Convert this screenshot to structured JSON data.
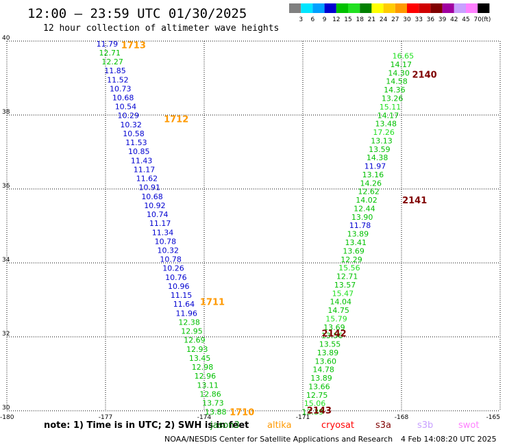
{
  "chart_data": {
    "type": "scatter",
    "title": "12:00 — 23:59 UTC 01/30/2025",
    "subtitle": "12 hour collection of altimeter wave heights",
    "xlim": [
      -180,
      -165
    ],
    "ylim": [
      30,
      40
    ],
    "x_ticks": [
      "-180",
      "-177",
      "-174",
      "-171",
      "-168",
      "-165"
    ],
    "y_ticks": [
      "30",
      "32",
      "34",
      "36",
      "38",
      "40"
    ],
    "colorbar": {
      "labels": [
        "3",
        "6",
        "9",
        "12",
        "15",
        "18",
        "21",
        "24",
        "27",
        "30",
        "33",
        "36",
        "39",
        "42",
        "45",
        "70"
      ],
      "unit": "(ft)",
      "colors": [
        "#808080",
        "#00e5ff",
        "#00a0ff",
        "#0000d0",
        "#00c000",
        "#20e020",
        "#008000",
        "#ffff00",
        "#ffcc00",
        "#ff9900",
        "#ff0000",
        "#d00000",
        "#800000",
        "#a000a0",
        "#c8a0ff",
        "#ff80ff",
        "#000000"
      ]
    },
    "passes": [
      {
        "label": "1713",
        "color": "#ff9900",
        "x": -176.15,
        "y": 39.9
      },
      {
        "label": "1712",
        "color": "#ff9900",
        "x": -174.85,
        "y": 37.9
      },
      {
        "label": "1711",
        "color": "#ff9900",
        "x": -173.75,
        "y": 32.95
      },
      {
        "label": "1710",
        "color": "#ff9900",
        "x": -172.85,
        "y": 29.97
      },
      {
        "label": "2140",
        "color": "#800000",
        "x": -167.3,
        "y": 39.1
      },
      {
        "label": "2141",
        "color": "#800000",
        "x": -167.6,
        "y": 35.7
      },
      {
        "label": "2142",
        "color": "#800000",
        "x": -170.05,
        "y": 32.1
      },
      {
        "label": "2143",
        "color": "#800000",
        "x": -170.5,
        "y": 30.02
      }
    ],
    "tracks": [
      {
        "x0": -176.95,
        "y0": 39.93,
        "x1": -173.65,
        "y1": 29.97,
        "values": [
          "11.79",
          "12.71",
          "12.27",
          "11.85",
          "11.52",
          "10.73",
          "10.68",
          "10.54",
          "10.29",
          "10.32",
          "10.58",
          "11.53",
          "10.85",
          "11.43",
          "11.17",
          "11.62",
          "10.91",
          "10.68",
          "10.92",
          "10.74",
          "11.17",
          "11.34",
          "10.78",
          "10.32",
          "10.78",
          "10.26",
          "10.76",
          "10.96",
          "11.15",
          "11.64",
          "11.96",
          "12.38",
          "12.95",
          "12.69",
          "12.93",
          "13.45",
          "12.98",
          "12.96",
          "13.11",
          "12.86",
          "13.73",
          "13.88"
        ]
      },
      {
        "x0": -167.95,
        "y0": 39.6,
        "x1": -170.7,
        "y1": 29.97,
        "values": [
          "16.65",
          "14.17",
          "14.30",
          "14.58",
          "14.36",
          "13.26",
          "15.11",
          "14.17",
          "13.48",
          "17.26",
          "13.13",
          "13.59",
          "14.38",
          "11.97",
          "13.16",
          "14.26",
          "12.62",
          "14.02",
          "12.44",
          "13.90",
          "11.78",
          "13.89",
          "13.41",
          "13.69",
          "12.29",
          "15.56",
          "12.71",
          "13.57",
          "15.47",
          "14.04",
          "14.75",
          "15.79",
          "13.69",
          "13.56",
          "13.55",
          "13.89",
          "13.60",
          "14.78",
          "13.89",
          "13.66",
          "12.75",
          "15.06",
          "13.39"
        ]
      }
    ]
  },
  "note": "note:  1) Time is in UTC; 2) SWH is in feet",
  "missions": [
    {
      "name": "jason3",
      "color": "#008000"
    },
    {
      "name": "altika",
      "color": "#ff9900"
    },
    {
      "name": "cryosat",
      "color": "#ff0000"
    },
    {
      "name": "s3a",
      "color": "#800000"
    },
    {
      "name": "s3b",
      "color": "#c8a0ff"
    },
    {
      "name": "swot",
      "color": "#ff80ff"
    }
  ],
  "footer_left": "NOAA/NESDIS Center for Satellite Applications and Research",
  "footer_right": "4 Feb 14:08:20 UTC 2025"
}
